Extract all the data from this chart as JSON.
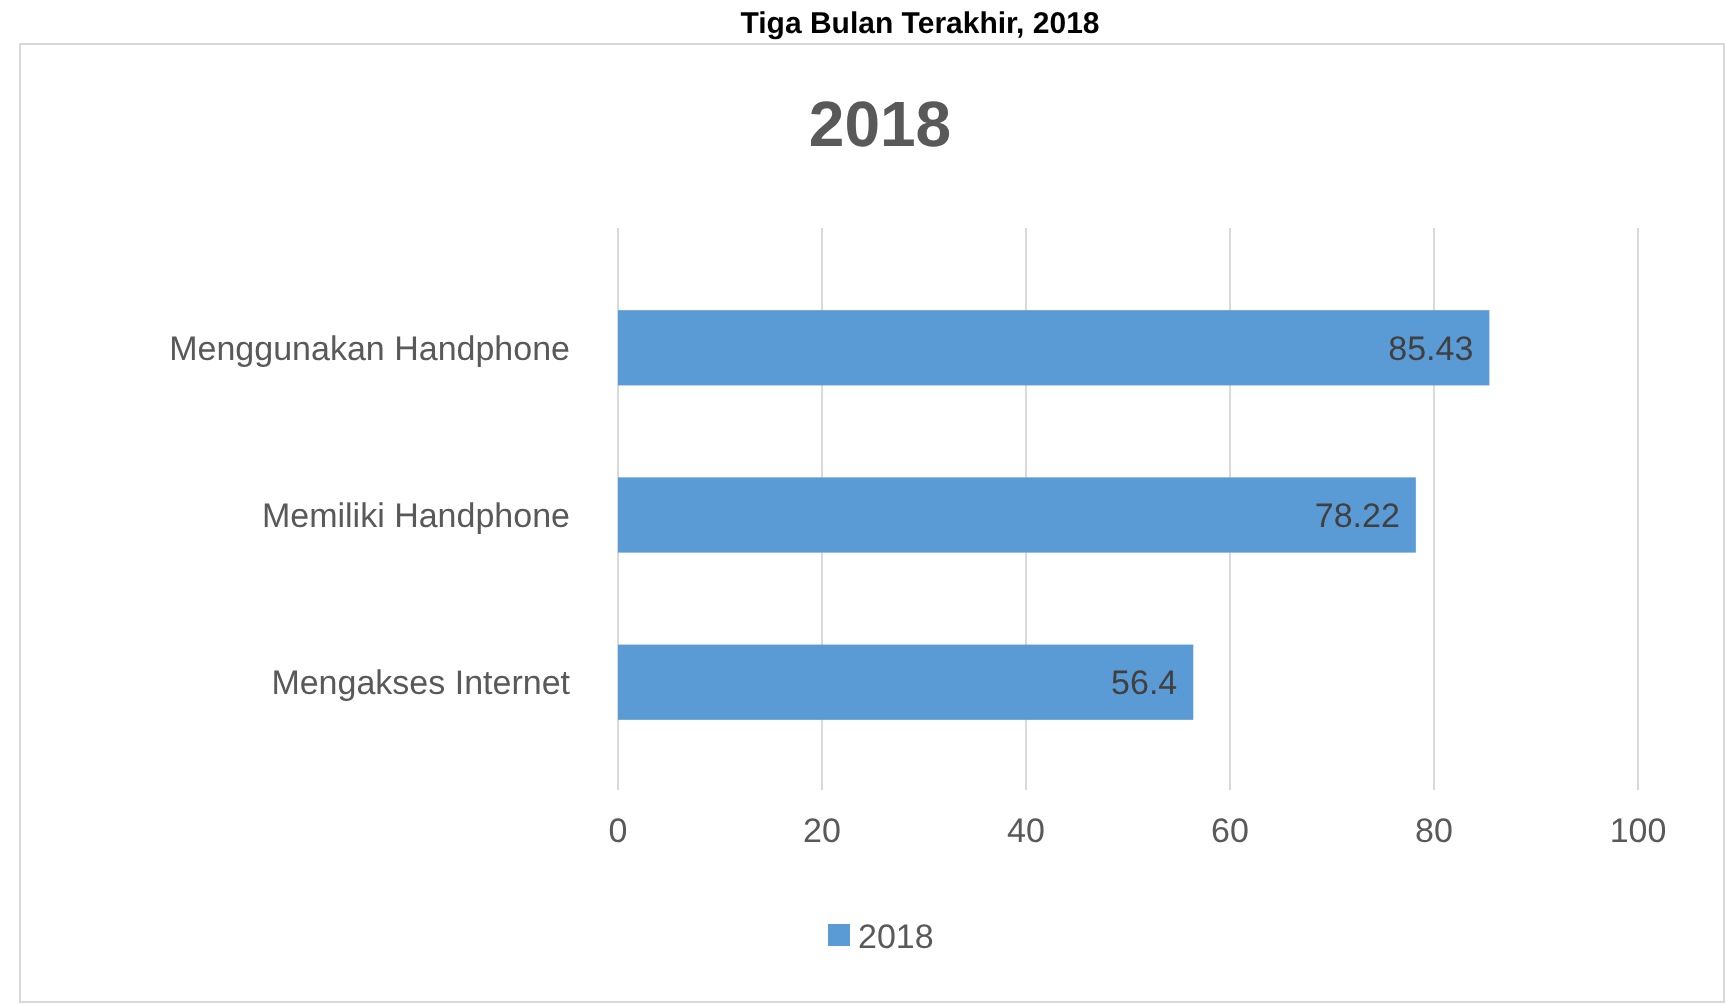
{
  "chart_data": {
    "type": "bar",
    "orientation": "horizontal",
    "title": "2018",
    "annotations": [
      "Tiga Bulan Terakhir, 2018"
    ],
    "categories": [
      "Menggunakan Handphone",
      "Memiliki Handphone",
      "Mengakses Internet"
    ],
    "series": [
      {
        "name": "2018",
        "color": "#5b9bd5",
        "values": [
          85.43,
          78.22,
          56.4
        ]
      }
    ],
    "data_labels": true,
    "xlim": [
      0,
      100
    ],
    "xticks": [
      0,
      20,
      40,
      60,
      80,
      100
    ],
    "grid": "x",
    "legend": "bottom"
  }
}
